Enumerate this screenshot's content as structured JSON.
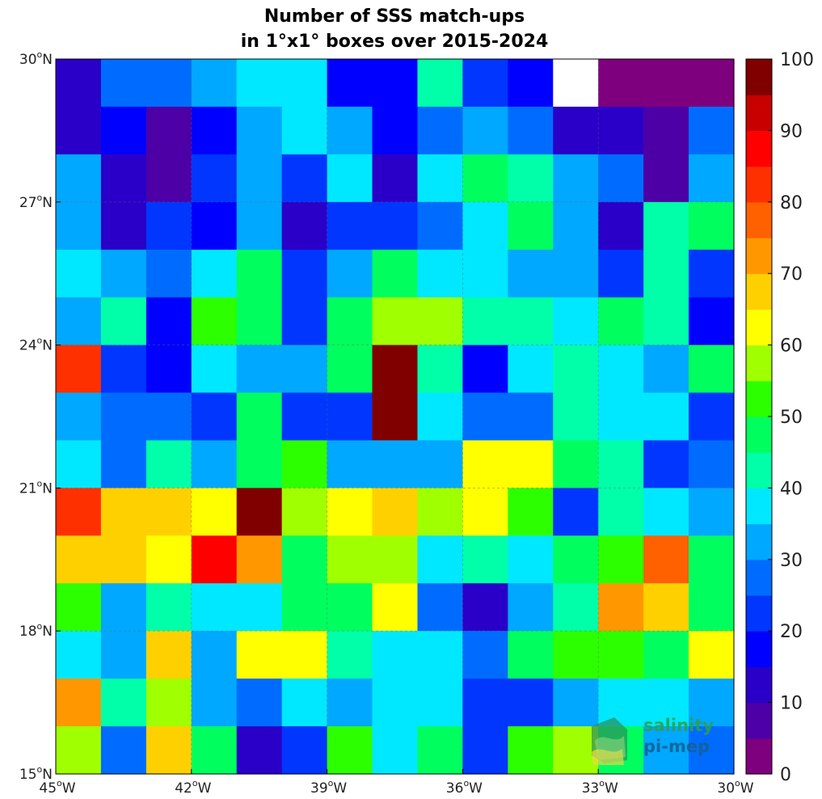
{
  "chart_data": {
    "type": "heatmap",
    "title_lines": [
      "Number of SSS match-ups",
      "in 1°x1° boxes over 2015-2024"
    ],
    "x_ticks": [
      {
        "value": -45,
        "deg": "45",
        "hemi": "W"
      },
      {
        "value": -42,
        "deg": "42",
        "hemi": "W"
      },
      {
        "value": -39,
        "deg": "39",
        "hemi": "W"
      },
      {
        "value": -36,
        "deg": "36",
        "hemi": "W"
      },
      {
        "value": -33,
        "deg": "33",
        "hemi": "W"
      },
      {
        "value": -30,
        "deg": "30",
        "hemi": "W"
      }
    ],
    "y_ticks": [
      {
        "value": 30,
        "deg": "30",
        "hemi": "N"
      },
      {
        "value": 27,
        "deg": "27",
        "hemi": "N"
      },
      {
        "value": 24,
        "deg": "24",
        "hemi": "N"
      },
      {
        "value": 21,
        "deg": "21",
        "hemi": "N"
      },
      {
        "value": 18,
        "deg": "18",
        "hemi": "N"
      },
      {
        "value": 15,
        "deg": "15",
        "hemi": "N"
      }
    ],
    "xlim": [
      -45,
      -30
    ],
    "ylim": [
      15,
      30
    ],
    "lon_start": -45,
    "lat_top": 30,
    "cell_size_deg": 1,
    "values": [
      [
        10,
        27,
        27,
        32,
        37,
        37,
        17,
        17,
        42,
        22,
        17,
        null,
        2,
        2,
        2
      ],
      [
        10,
        17,
        5,
        17,
        32,
        37,
        32,
        17,
        27,
        32,
        27,
        12,
        12,
        7,
        27
      ],
      [
        32,
        10,
        5,
        22,
        32,
        22,
        37,
        12,
        37,
        47,
        42,
        32,
        27,
        7,
        32
      ],
      [
        32,
        10,
        22,
        17,
        32,
        12,
        22,
        22,
        27,
        37,
        47,
        32,
        12,
        42,
        47
      ],
      [
        37,
        32,
        27,
        37,
        47,
        22,
        32,
        47,
        37,
        37,
        32,
        32,
        22,
        42,
        22
      ],
      [
        32,
        42,
        17,
        52,
        47,
        22,
        47,
        57,
        57,
        42,
        42,
        37,
        47,
        42,
        17
      ],
      [
        82,
        22,
        17,
        37,
        32,
        32,
        47,
        100,
        42,
        17,
        37,
        42,
        37,
        32,
        47
      ],
      [
        32,
        27,
        27,
        22,
        47,
        22,
        22,
        100,
        37,
        27,
        27,
        42,
        37,
        37,
        22
      ],
      [
        37,
        27,
        42,
        32,
        47,
        52,
        32,
        32,
        32,
        62,
        62,
        47,
        42,
        22,
        27
      ],
      [
        82,
        67,
        67,
        62,
        100,
        57,
        62,
        67,
        57,
        62,
        52,
        22,
        42,
        37,
        32
      ],
      [
        67,
        67,
        62,
        87,
        72,
        47,
        57,
        57,
        37,
        42,
        37,
        47,
        52,
        77,
        47
      ],
      [
        52,
        32,
        42,
        37,
        37,
        47,
        47,
        62,
        27,
        12,
        32,
        42,
        72,
        67,
        47
      ],
      [
        37,
        32,
        67,
        32,
        62,
        62,
        42,
        37,
        37,
        27,
        47,
        52,
        52,
        47,
        62
      ],
      [
        72,
        42,
        57,
        32,
        27,
        37,
        32,
        37,
        37,
        22,
        22,
        32,
        37,
        37,
        32
      ],
      [
        57,
        27,
        67,
        47,
        12,
        22,
        52,
        37,
        47,
        22,
        52,
        57,
        47,
        32,
        27
      ]
    ],
    "colorbar": {
      "min": 0,
      "max": 100,
      "ticks": [
        0,
        10,
        20,
        30,
        40,
        50,
        60,
        70,
        80,
        90,
        100
      ],
      "colors": [
        "#7f007f",
        "#4c00a6",
        "#2a00c8",
        "#0000ff",
        "#0036ff",
        "#006cff",
        "#00a8ff",
        "#00e8ff",
        "#00ffa8",
        "#00ff5e",
        "#2cff00",
        "#a0ff00",
        "#ffff00",
        "#ffd000",
        "#ff9800",
        "#ff6000",
        "#ff3000",
        "#ff0000",
        "#c80000",
        "#800000"
      ]
    },
    "grid": true,
    "nan_color": "#ffffff"
  },
  "logo": {
    "line1": "salinity",
    "line2": "pi-mep"
  }
}
